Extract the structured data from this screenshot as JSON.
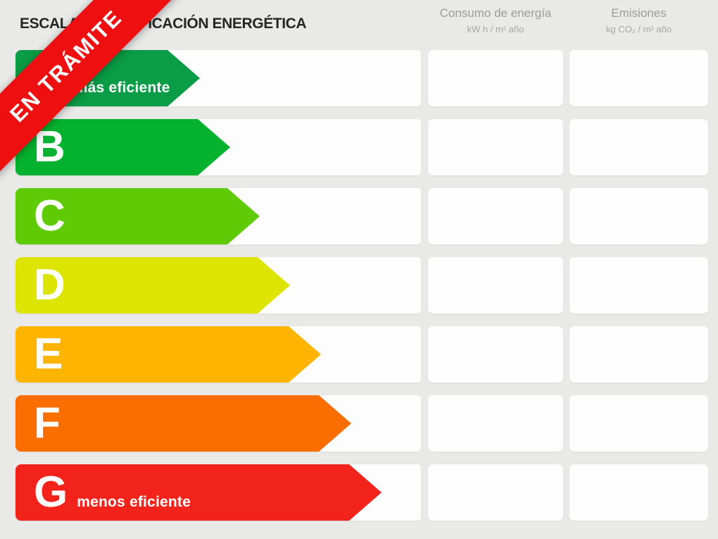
{
  "title": "ESCALA DE CALIFICACIÓN ENERGÉTICA",
  "stamp": {
    "label": "EN TRÁMITE",
    "color": "#ee1010"
  },
  "columns": {
    "consumption": {
      "title": "Consumo de energía",
      "unit": "kW h / m² año"
    },
    "emissions": {
      "title": "Emisiones",
      "unit": "kg CO₂ / m² año"
    }
  },
  "scale": {
    "rows": [
      {
        "letter": "A",
        "qualifier": "más eficiente",
        "color": "#0a9c46",
        "consumption_value": "",
        "emissions_value": ""
      },
      {
        "letter": "B",
        "qualifier": "",
        "color": "#04b22f",
        "consumption_value": "",
        "emissions_value": ""
      },
      {
        "letter": "C",
        "qualifier": "",
        "color": "#5ecb06",
        "consumption_value": "",
        "emissions_value": ""
      },
      {
        "letter": "D",
        "qualifier": "",
        "color": "#dde400",
        "consumption_value": "",
        "emissions_value": ""
      },
      {
        "letter": "E",
        "qualifier": "",
        "color": "#ffb400",
        "consumption_value": "",
        "emissions_value": ""
      },
      {
        "letter": "F",
        "qualifier": "",
        "color": "#fa6e00",
        "consumption_value": "",
        "emissions_value": ""
      },
      {
        "letter": "G",
        "qualifier": "menos eficiente",
        "color": "#f2231a",
        "consumption_value": "",
        "emissions_value": ""
      }
    ]
  },
  "chart_data": {
    "type": "bar",
    "title": "ESCALA DE CALIFICACIÓN ENERGÉTICA",
    "categories": [
      "A",
      "B",
      "C",
      "D",
      "E",
      "F",
      "G"
    ],
    "series": [
      {
        "name": "arrow_length_px",
        "values": [
          262,
          305,
          347,
          390,
          434,
          477,
          520
        ]
      }
    ],
    "bar_colors": [
      "#0a9c46",
      "#04b22f",
      "#5ecb06",
      "#dde400",
      "#ffb400",
      "#fa6e00",
      "#f2231a"
    ],
    "value_columns": [
      {
        "title": "Consumo de energía",
        "unit": "kW h / m² año",
        "values": [
          null,
          null,
          null,
          null,
          null,
          null,
          null
        ]
      },
      {
        "title": "Emisiones",
        "unit": "kg CO₂ / m² año",
        "values": [
          null,
          null,
          null,
          null,
          null,
          null,
          null
        ]
      }
    ],
    "annotations": [
      "más eficiente",
      "menos eficiente",
      "EN TRÁMITE"
    ],
    "layout": {
      "orientation": "horizontal",
      "grid": false,
      "legend": false
    }
  }
}
